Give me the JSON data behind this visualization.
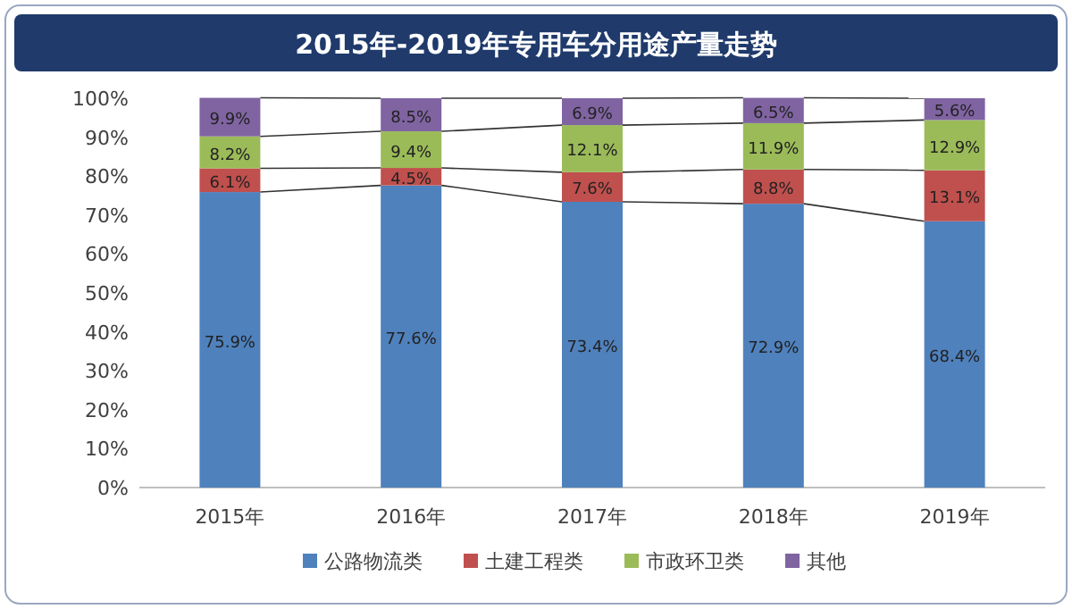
{
  "chart_data": {
    "type": "bar",
    "title": "2015年-2019年专用车分用途产量走势",
    "stacked": true,
    "categories": [
      "2015年",
      "2016年",
      "2017年",
      "2018年",
      "2019年"
    ],
    "series": [
      {
        "name": "公路物流类",
        "color": "#4f81bd",
        "values": [
          75.9,
          77.6,
          73.4,
          72.9,
          68.4
        ],
        "value_labels": [
          "75.9%",
          "77.6%",
          "73.4%",
          "72.9%",
          "68.4%"
        ]
      },
      {
        "name": "土建工程类",
        "color": "#c0504d",
        "values": [
          6.1,
          4.5,
          7.6,
          8.8,
          13.1
        ],
        "value_labels": [
          "6.1%",
          "4.5%",
          "7.6%",
          "8.8%",
          "13.1%"
        ]
      },
      {
        "name": "市政环卫类",
        "color": "#9bbb59",
        "values": [
          8.2,
          9.4,
          12.1,
          11.9,
          12.9
        ],
        "value_labels": [
          "8.2%",
          "9.4%",
          "12.1%",
          "11.9%",
          "12.9%"
        ]
      },
      {
        "name": "其他",
        "color": "#8064a2",
        "values": [
          9.9,
          8.5,
          6.9,
          6.5,
          5.6
        ],
        "value_labels": [
          "9.9%",
          "8.5%",
          "6.9%",
          "6.5%",
          "5.6%"
        ]
      }
    ],
    "ylim": [
      0,
      100
    ],
    "yticks": [
      {
        "value": 0,
        "label": "0%"
      },
      {
        "value": 10,
        "label": "10%"
      },
      {
        "value": 20,
        "label": "20%"
      },
      {
        "value": 30,
        "label": "30%"
      },
      {
        "value": 40,
        "label": "40%"
      },
      {
        "value": 50,
        "label": "50%"
      },
      {
        "value": 60,
        "label": "60%"
      },
      {
        "value": 70,
        "label": "70%"
      },
      {
        "value": 80,
        "label": "80%"
      },
      {
        "value": 90,
        "label": "90%"
      },
      {
        "value": 100,
        "label": "100%"
      }
    ],
    "legend": "bottom"
  }
}
